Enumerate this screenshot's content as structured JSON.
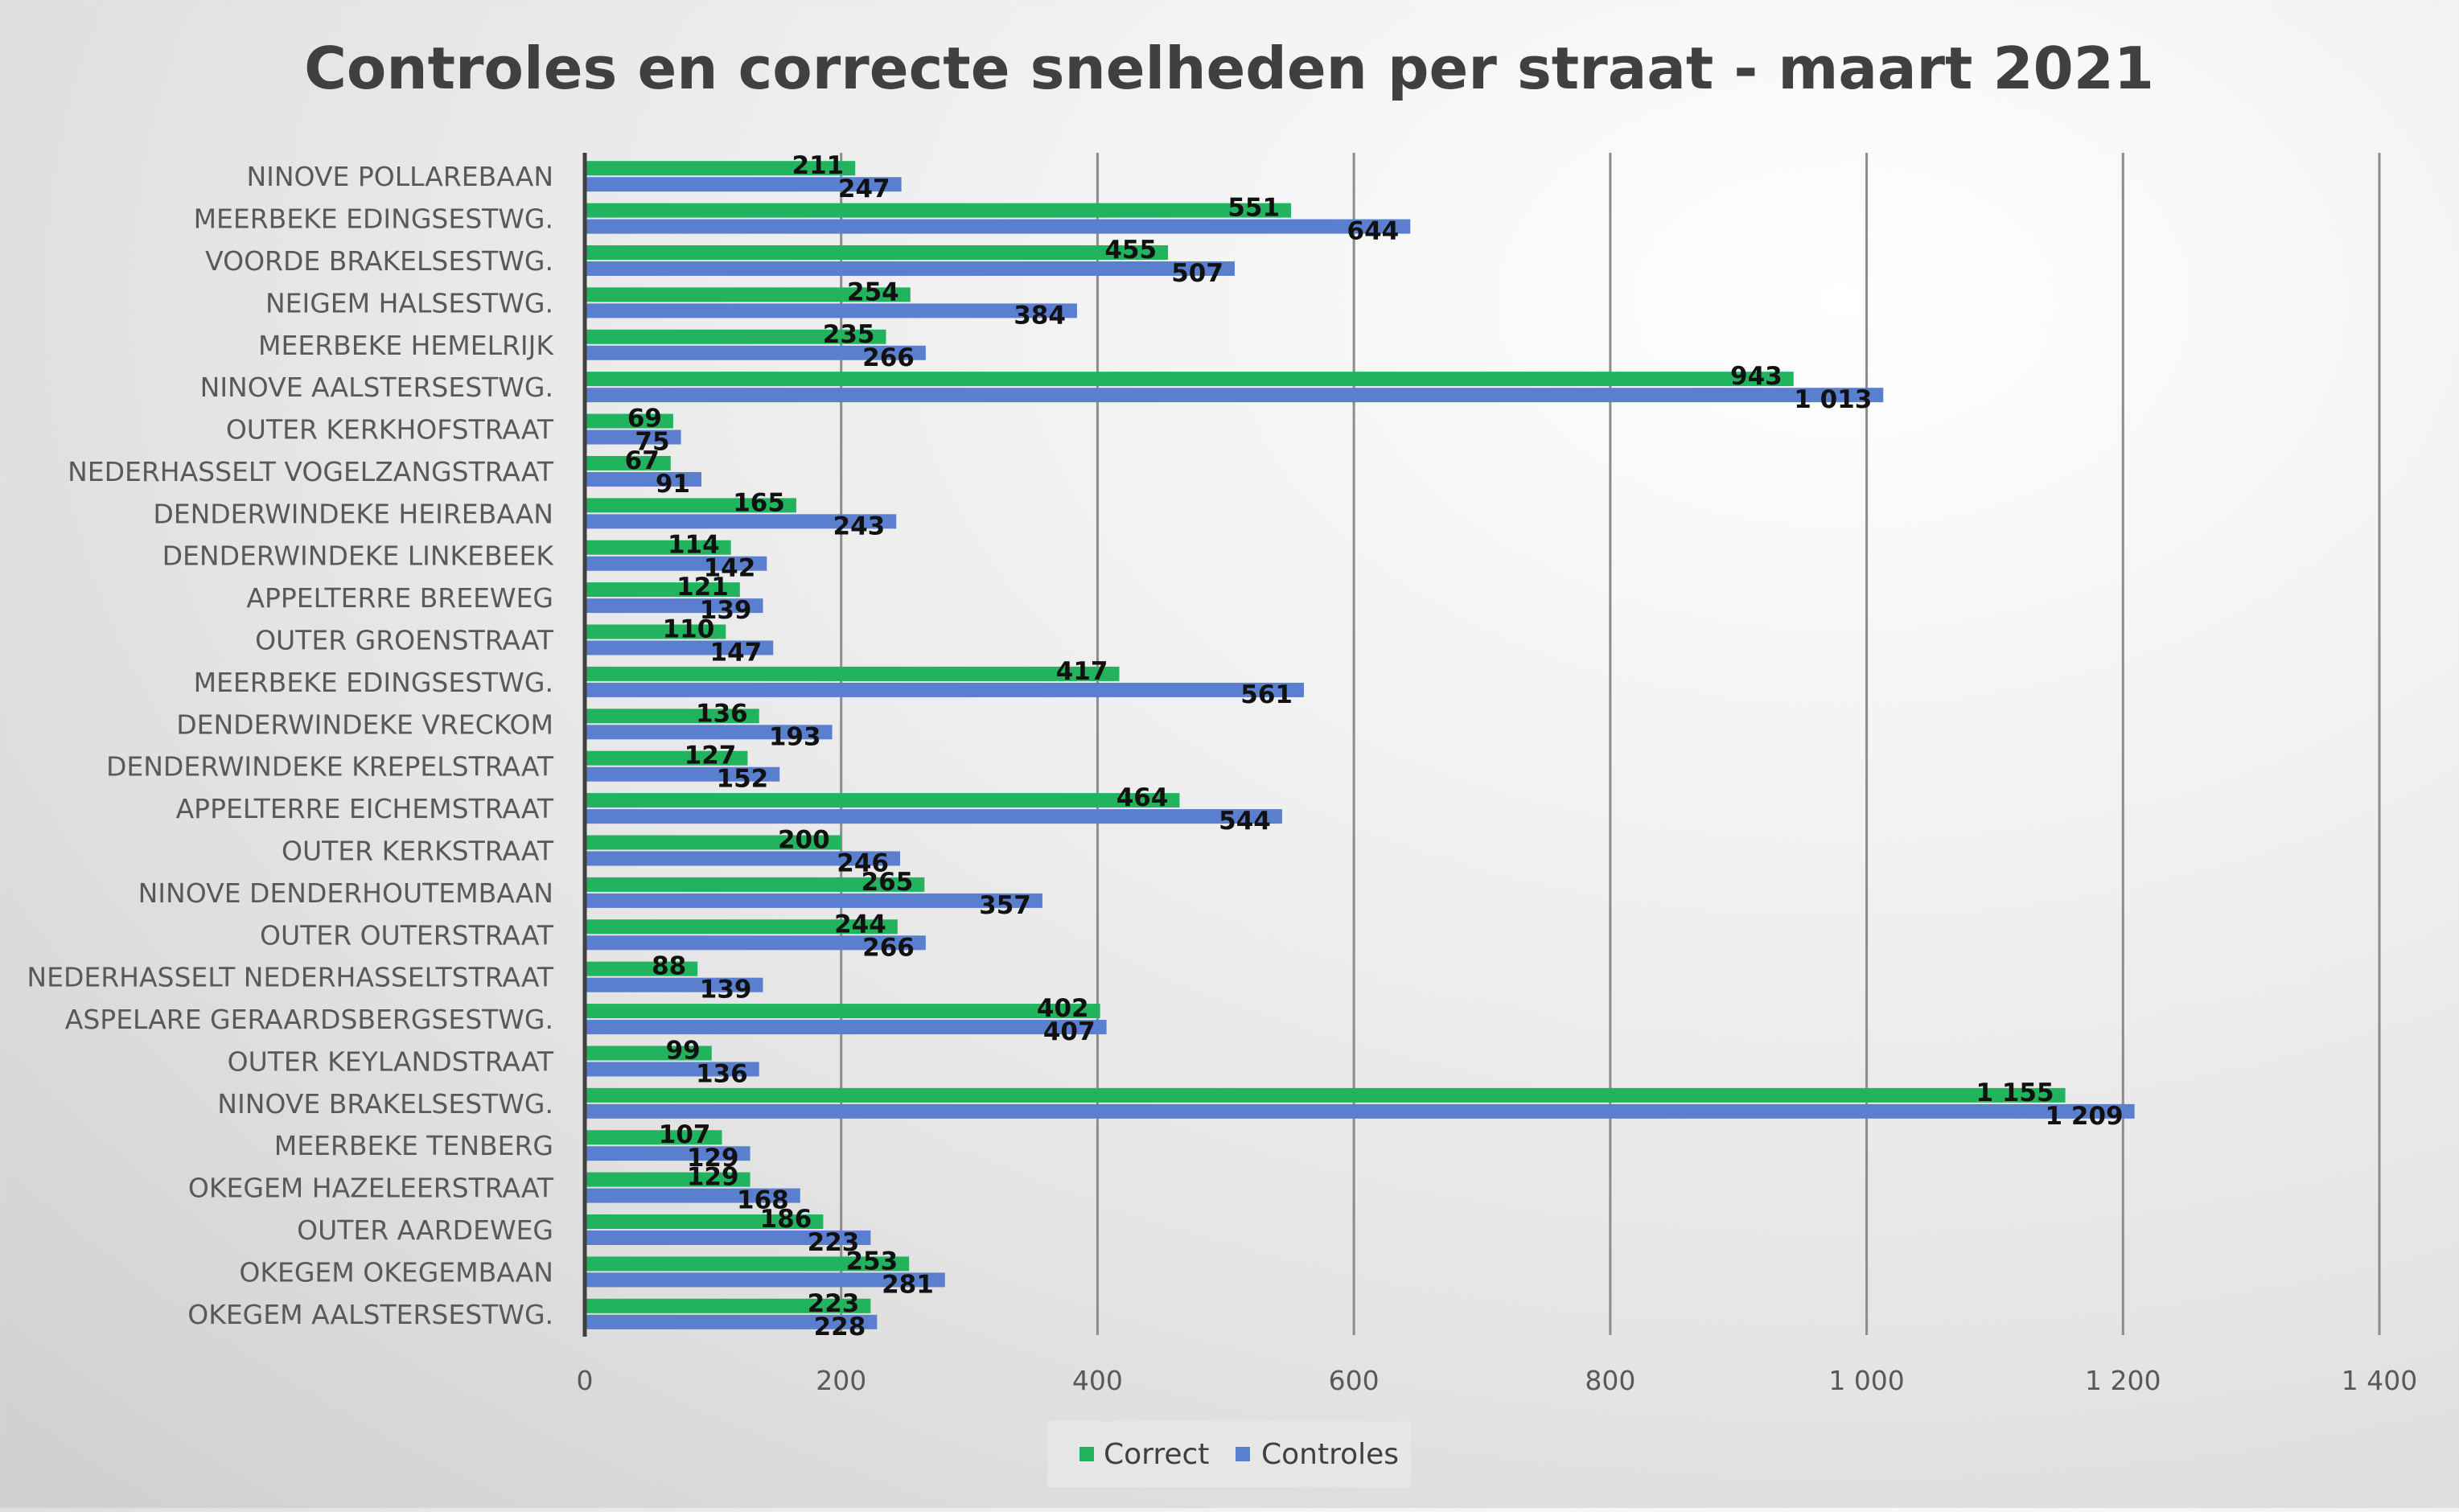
{
  "chart_data": {
    "type": "bar",
    "orientation": "horizontal",
    "title": "Controles en correcte snelheden per straat - maart 2021",
    "xlabel": "",
    "ylabel": "",
    "xlim": [
      0,
      1400
    ],
    "x_ticks": [
      "0",
      "200",
      "400",
      "600",
      "800",
      "1 000",
      "1 200",
      "1 400"
    ],
    "grid": true,
    "legend_position": "bottom",
    "categories": [
      "NINOVE POLLAREBAAN",
      "MEERBEKE EDINGSESTWG.",
      "VOORDE BRAKELSESTWG.",
      "NEIGEM HALSESTWG.",
      "MEERBEKE HEMELRIJK",
      "NINOVE AALSTERSESTWG.",
      "OUTER KERKHOFSTRAAT",
      "NEDERHASSELT VOGELZANGSTRAAT",
      "DENDERWINDEKE HEIREBAAN",
      "DENDERWINDEKE LINKEBEEK",
      "APPELTERRE BREEWEG",
      "OUTER GROENSTRAAT",
      "MEERBEKE EDINGSESTWG.",
      "DENDERWINDEKE VRECKOM",
      "DENDERWINDEKE KREPELSTRAAT",
      "APPELTERRE EICHEMSTRAAT",
      "OUTER KERKSTRAAT",
      "NINOVE DENDERHOUTEMBAAN",
      "OUTER OUTERSTRAAT",
      "NEDERHASSELT NEDERHASSELTSTRAAT",
      "ASPELARE GERAARDSBERGSESTWG.",
      "OUTER KEYLANDSTRAAT",
      "NINOVE BRAKELSESTWG.",
      "MEERBEKE TENBERG",
      "OKEGEM HAZELEERSTRAAT",
      "OUTER AARDEWEG",
      "OKEGEM OKEGEMBAAN",
      "OKEGEM AALSTERSESTWG."
    ],
    "series": [
      {
        "name": "Correct",
        "color": "#22b35e",
        "values": [
          211,
          551,
          455,
          254,
          235,
          943,
          69,
          67,
          165,
          114,
          121,
          110,
          417,
          136,
          127,
          464,
          200,
          265,
          244,
          88,
          402,
          99,
          1155,
          107,
          129,
          186,
          253,
          223
        ],
        "labels": [
          "211",
          "551",
          "455",
          "254",
          "235",
          "943",
          "69",
          "67",
          "165",
          "114",
          "121",
          "110",
          "417",
          "136",
          "127",
          "464",
          "200",
          "265",
          "244",
          "88",
          "402",
          "99",
          "1 155",
          "107",
          "129",
          "186",
          "253",
          "223"
        ]
      },
      {
        "name": "Controles",
        "color": "#5b7fcf",
        "values": [
          247,
          644,
          507,
          384,
          266,
          1013,
          75,
          91,
          243,
          142,
          139,
          147,
          561,
          193,
          152,
          544,
          246,
          357,
          266,
          139,
          407,
          136,
          1209,
          129,
          168,
          223,
          281,
          228
        ],
        "labels": [
          "247",
          "644",
          "507",
          "384",
          "266",
          "1 013",
          "75",
          "91",
          "243",
          "142",
          "139",
          "147",
          "561",
          "193",
          "152",
          "544",
          "246",
          "357",
          "266",
          "139",
          "407",
          "136",
          "1 209",
          "129",
          "168",
          "223",
          "281",
          "228"
        ]
      }
    ]
  }
}
